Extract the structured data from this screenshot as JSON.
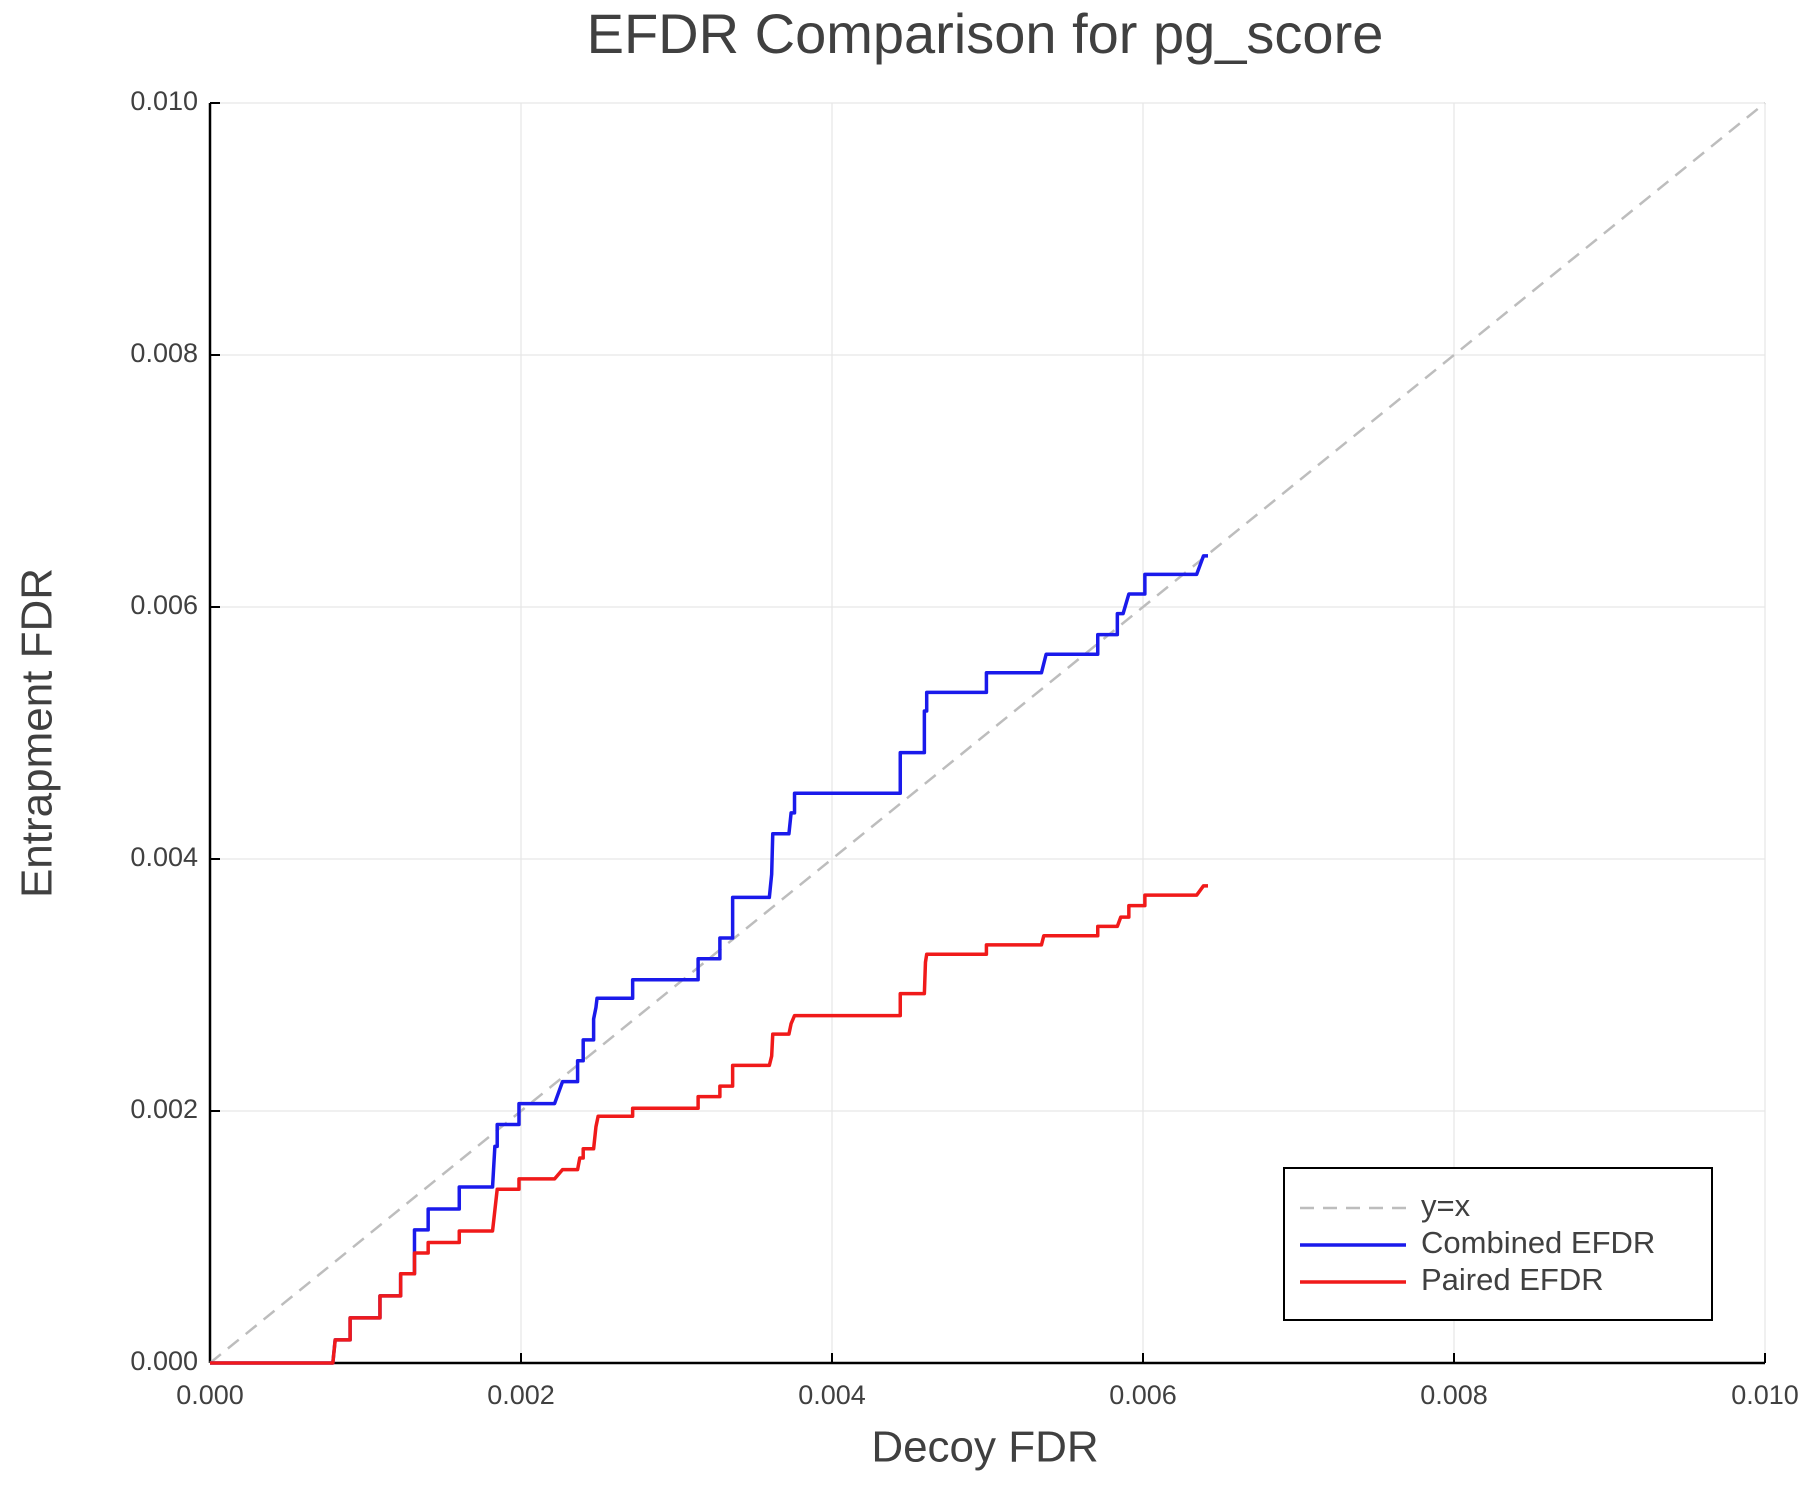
{
  "chart_data": {
    "type": "line",
    "title": "EFDR Comparison for pg_score",
    "x_label": "Decoy FDR",
    "y_label": "Entrapment FDR",
    "xlim": [
      0,
      0.01
    ],
    "ylim": [
      0,
      0.01
    ],
    "xticks": [
      {
        "value": 0,
        "label": "0.000"
      },
      0.002,
      0.004,
      0.006,
      0.008,
      {
        "value": 0.01,
        "label": "0.010"
      }
    ],
    "yticks": [
      {
        "value": 0,
        "label": "0.000"
      },
      0.002,
      0.004,
      0.006,
      0.008,
      {
        "value": 0.01,
        "label": "0.010"
      }
    ],
    "grid": true,
    "legend": "lower right",
    "series": [
      {
        "name": "y=x",
        "color": "#bdbdbd",
        "style": "dashed",
        "x": [
          0,
          0.01
        ],
        "values": [
          0,
          0.01
        ]
      },
      {
        "name": "Combined EFDR",
        "color": "#1a1aeb",
        "style": "solid",
        "x": [
          0,
          0.00079,
          0.000805,
          0.000901,
          0.000901,
          0.001093,
          0.001093,
          0.001226,
          0.001226,
          0.001315,
          0.001315,
          0.001403,
          0.001403,
          0.001603,
          0.001603,
          0.001817,
          0.001832,
          0.001847,
          0.001847,
          0.001987,
          0.001987,
          0.002216,
          0.002267,
          0.002364,
          0.002364,
          0.0024,
          0.0024,
          0.002467,
          0.002467,
          0.002482,
          0.002489,
          0.002718,
          0.002718,
          0.003139,
          0.003139,
          0.003279,
          0.003279,
          0.003361,
          0.003361,
          0.003597,
          0.003612,
          0.003619,
          0.003723,
          0.003737,
          0.003759,
          0.003759,
          0.004439,
          0.004439,
          0.004594,
          0.004594,
          0.004609,
          0.004609,
          0.004993,
          0.004993,
          0.005347,
          0.005377,
          0.005709,
          0.005709,
          0.005835,
          0.005835,
          0.005872,
          0.005909,
          0.006012,
          0.006012,
          0.006345,
          0.006389,
          0.006418
        ],
        "values": [
          0,
          0,
          0.000184,
          0.000184,
          0.000358,
          0.000358,
          0.000533,
          0.000533,
          0.000708,
          0.000708,
          0.001057,
          0.001057,
          0.001222,
          0.001222,
          0.001397,
          0.001397,
          0.001719,
          0.001719,
          0.001893,
          0.001893,
          0.002059,
          0.002059,
          0.002233,
          0.002233,
          0.002399,
          0.002399,
          0.002564,
          0.002564,
          0.00273,
          0.002822,
          0.002895,
          0.002895,
          0.003042,
          0.003042,
          0.003208,
          0.003208,
          0.003373,
          0.003373,
          0.003695,
          0.003695,
          0.003879,
          0.0042,
          0.0042,
          0.004366,
          0.004366,
          0.004522,
          0.004522,
          0.004844,
          0.004844,
          0.005175,
          0.005175,
          0.005322,
          0.005322,
          0.005478,
          0.005478,
          0.005625,
          0.005625,
          0.005781,
          0.005781,
          0.005947,
          0.005947,
          0.006103,
          0.006103,
          0.006259,
          0.006259,
          0.006406,
          0.006406
        ]
      },
      {
        "name": "Paired EFDR",
        "color": "#f01a1a",
        "style": "solid",
        "x": [
          0,
          0.00079,
          0.000805,
          0.000901,
          0.000901,
          0.001093,
          0.001093,
          0.001226,
          0.001226,
          0.001315,
          0.001315,
          0.001403,
          0.001403,
          0.001603,
          0.001603,
          0.001817,
          0.001832,
          0.001847,
          0.001987,
          0.001987,
          0.002216,
          0.002267,
          0.002364,
          0.002378,
          0.0024,
          0.0024,
          0.002467,
          0.002482,
          0.002496,
          0.002718,
          0.002718,
          0.003139,
          0.003139,
          0.003279,
          0.003279,
          0.003361,
          0.003361,
          0.003597,
          0.003612,
          0.003619,
          0.003723,
          0.003737,
          0.003759,
          0.004439,
          0.004439,
          0.004594,
          0.004601,
          0.004609,
          0.004993,
          0.004993,
          0.005347,
          0.005362,
          0.005709,
          0.005709,
          0.005835,
          0.005857,
          0.005909,
          0.005909,
          0.006012,
          0.006012,
          0.006345,
          0.006389,
          0.006418
        ],
        "values": [
          0,
          0,
          0.000184,
          0.000184,
          0.000358,
          0.000358,
          0.000533,
          0.000533,
          0.000708,
          0.000708,
          0.000873,
          0.000873,
          0.000956,
          0.000956,
          0.001048,
          0.001048,
          0.001213,
          0.001379,
          0.001379,
          0.001461,
          0.001461,
          0.001535,
          0.001535,
          0.001627,
          0.001627,
          0.0017,
          0.0017,
          0.001875,
          0.001958,
          0.001958,
          0.002022,
          0.002022,
          0.002114,
          0.002114,
          0.002197,
          0.002197,
          0.002362,
          0.002362,
          0.002436,
          0.00261,
          0.00261,
          0.002693,
          0.002757,
          0.002757,
          0.002932,
          0.002932,
          0.00318,
          0.003244,
          0.003244,
          0.003318,
          0.003318,
          0.003391,
          0.003391,
          0.003465,
          0.003465,
          0.003539,
          0.003539,
          0.00363,
          0.00363,
          0.003713,
          0.003713,
          0.003787,
          0.003787
        ]
      }
    ]
  }
}
